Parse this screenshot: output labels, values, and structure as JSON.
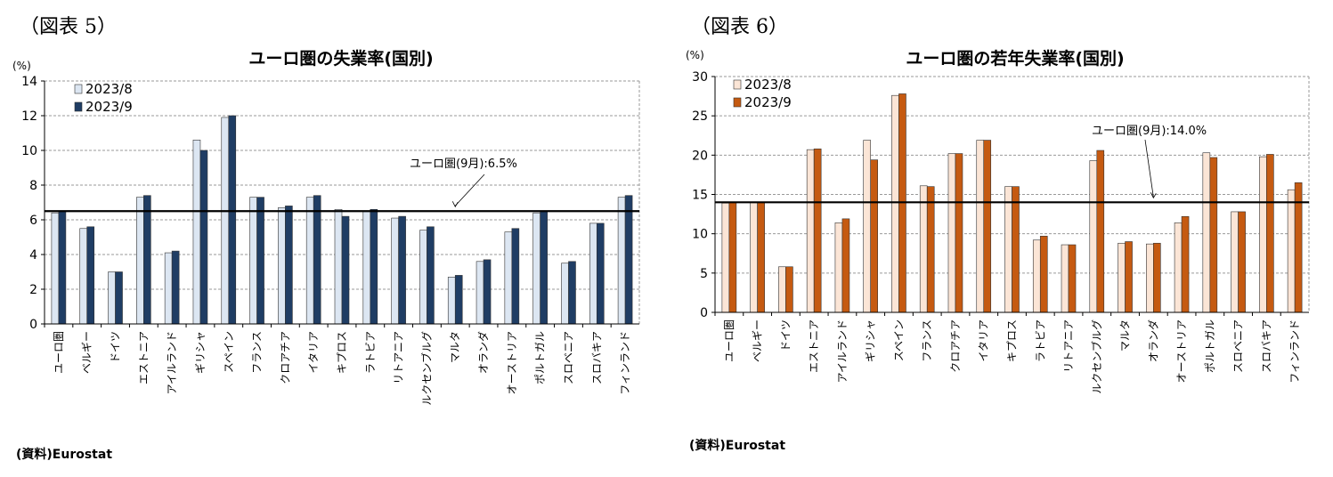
{
  "figures": [
    {
      "label": "（図表 5）",
      "source": "(資料)Eurostat",
      "chart_data": {
        "type": "bar",
        "title": "ユーロ圏の失業率(国別)",
        "unit_label": "(%)",
        "ylim": [
          0,
          14
        ],
        "yticks": [
          0,
          2,
          4,
          6,
          8,
          10,
          12,
          14
        ],
        "grid": "y-dashed",
        "legend_position": "top-left",
        "categories": [
          "ユーロ圏",
          "ベルギー",
          "ドイツ",
          "エストニア",
          "アイルランド",
          "ギリシャ",
          "スペイン",
          "フランス",
          "クロアチア",
          "イタリア",
          "キプロス",
          "ラトビア",
          "リトアニア",
          "ルクセンブルグ",
          "マルタ",
          "オランダ",
          "オーストリア",
          "ポルトガル",
          "スロベニア",
          "スロバキア",
          "フィンランド"
        ],
        "series": [
          {
            "name": "2023/8",
            "color": "#dce6f2",
            "values": [
              6.4,
              5.5,
              3.0,
              7.3,
              4.1,
              10.6,
              11.9,
              7.3,
              6.7,
              7.3,
              6.6,
              6.5,
              6.1,
              5.4,
              2.7,
              3.6,
              5.3,
              6.4,
              3.5,
              5.8,
              7.3
            ]
          },
          {
            "name": "2023/9",
            "color": "#1f3d64",
            "values": [
              6.5,
              5.6,
              3.0,
              7.4,
              4.2,
              10.0,
              12.0,
              7.3,
              6.8,
              7.4,
              6.2,
              6.6,
              6.2,
              5.6,
              2.8,
              3.7,
              5.5,
              6.5,
              3.6,
              5.8,
              7.4
            ]
          }
        ],
        "reference_line": {
          "value": 6.5,
          "label": "ユーロ圏(9月):6.5%",
          "color": "#000000"
        },
        "annotation_anchor_category": 14
      }
    },
    {
      "label": "（図表 6）",
      "source": "(資料)Eurostat",
      "chart_data": {
        "type": "bar",
        "title": "ユーロ圏の若年失業率(国別)",
        "unit_label": "(%)",
        "ylim": [
          0,
          30
        ],
        "yticks": [
          0,
          5,
          10,
          15,
          20,
          25,
          30
        ],
        "grid": "y-dashed",
        "legend_position": "top-left",
        "categories": [
          "ユーロ圏",
          "ベルギー",
          "ドイツ",
          "エストニア",
          "アイルランド",
          "ギリシャ",
          "スペイン",
          "フランス",
          "クロアチア",
          "イタリア",
          "キプロス",
          "ラトビア",
          "リトアニア",
          "ルクセンブルグ",
          "マルタ",
          "オランダ",
          "オーストリア",
          "ポルトガル",
          "スロベニア",
          "スロバキア",
          "フィンランド"
        ],
        "series": [
          {
            "name": "2023/8",
            "color": "#fbe5d6",
            "values": [
              13.9,
              14.0,
              5.8,
              20.7,
              11.4,
              21.9,
              27.6,
              16.1,
              20.2,
              21.9,
              16.0,
              9.2,
              8.6,
              19.3,
              8.8,
              8.7,
              11.4,
              20.3,
              12.8,
              19.8,
              15.6
            ]
          },
          {
            "name": "2023/9",
            "color": "#c55a11",
            "values": [
              14.0,
              14.0,
              5.8,
              20.8,
              11.9,
              19.4,
              27.8,
              16.0,
              20.2,
              21.9,
              16.0,
              9.7,
              8.6,
              20.6,
              9.0,
              8.8,
              12.2,
              19.7,
              12.8,
              20.1,
              16.5
            ]
          }
        ],
        "reference_line": {
          "value": 14.0,
          "label": "ユーロ圏(9月):14.0%",
          "color": "#000000"
        },
        "annotation_anchor_category": 15
      }
    }
  ]
}
